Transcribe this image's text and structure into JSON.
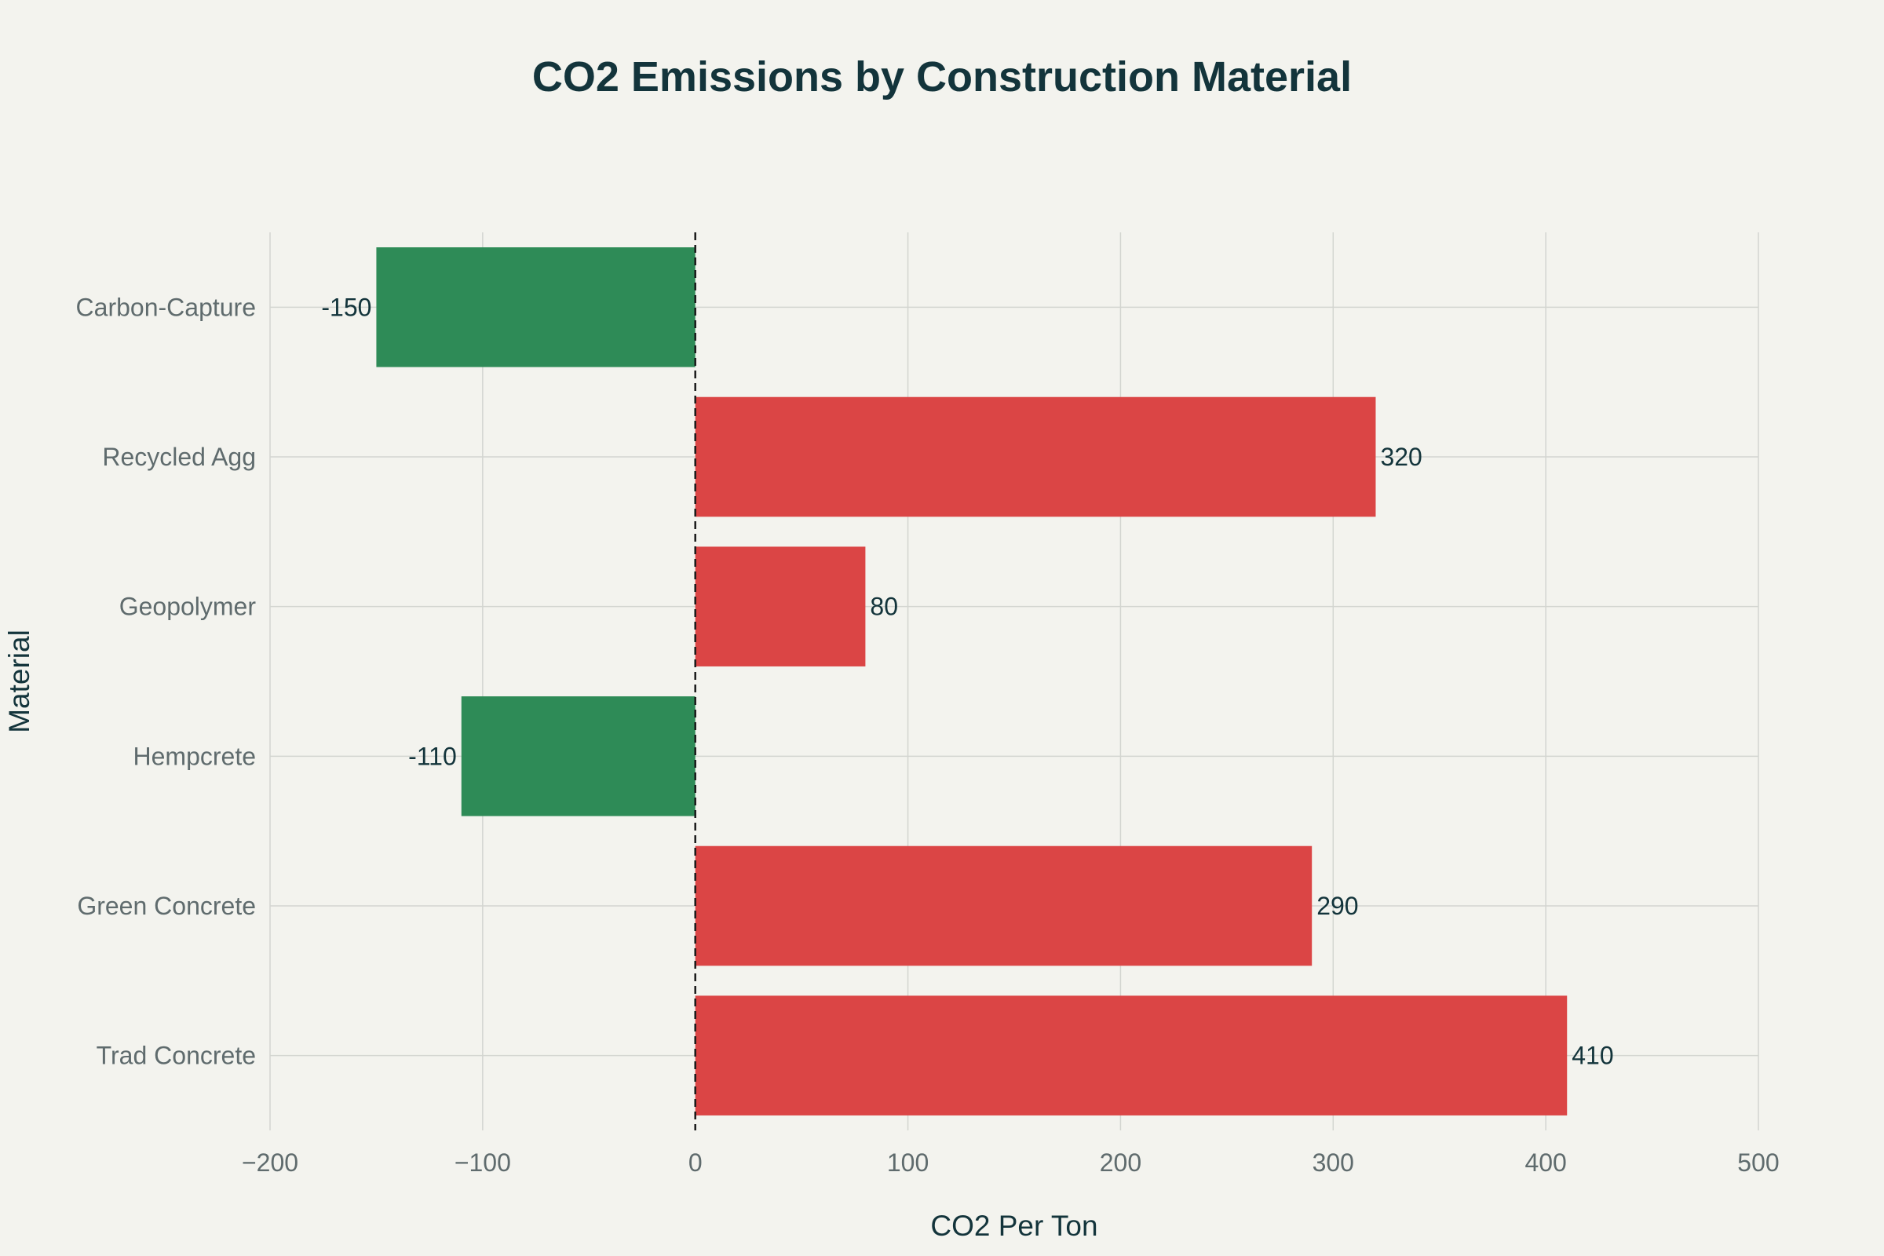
{
  "chart_data": {
    "type": "bar",
    "orientation": "horizontal",
    "title": "CO2 Emissions by Construction Material",
    "xlabel": "CO2 Per Ton",
    "ylabel": "Material",
    "categories": [
      "Trad Concrete",
      "Green Concrete",
      "Hempcrete",
      "Geopolymer",
      "Recycled Agg",
      "Carbon-Capture"
    ],
    "values": [
      410,
      290,
      -110,
      80,
      320,
      -150
    ],
    "data_labels": [
      "410",
      "290",
      "-110",
      "80",
      "320",
      "-150"
    ],
    "xlim": [
      -200,
      500
    ],
    "xticks": [
      -200,
      -100,
      0,
      100,
      200,
      300,
      400,
      500
    ],
    "xtick_labels": [
      "−200",
      "−100",
      "0",
      "100",
      "200",
      "300",
      "400",
      "500"
    ],
    "grid": true,
    "zero_line": "dashed",
    "colors": {
      "positive": "#db4545",
      "negative": "#2e8b57",
      "background": "#f3f3ee",
      "text": "#13343b"
    }
  }
}
